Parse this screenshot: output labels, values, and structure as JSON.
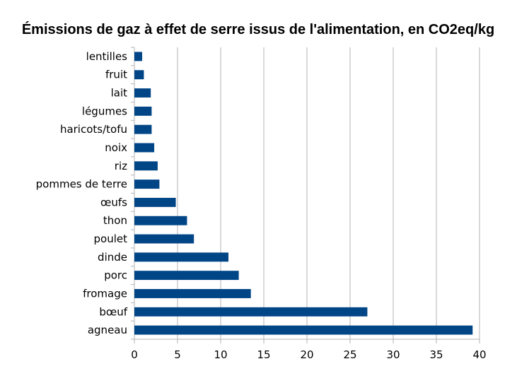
{
  "chart_data": {
    "type": "bar",
    "orientation": "horizontal",
    "title": "Émissions de gaz à effet de serre  issus de l'alimentation, en CO2eq/kg",
    "xlabel": "",
    "ylabel": "",
    "categories": [
      "lentilles",
      "fruit",
      "lait",
      "légumes",
      "haricots/tofu",
      "noix",
      "riz",
      "pommes de terre",
      "œufs",
      "thon",
      "poulet",
      "dinde",
      "porc",
      "fromage",
      "bœuf",
      "agneau"
    ],
    "values": [
      0.9,
      1.1,
      1.9,
      2.0,
      2.0,
      2.3,
      2.7,
      2.9,
      4.8,
      6.1,
      6.9,
      10.9,
      12.1,
      13.5,
      27.0,
      39.2
    ],
    "xlim": [
      0,
      40
    ],
    "xticks": [
      0,
      5,
      10,
      15,
      20,
      25,
      30,
      35,
      40
    ],
    "grid": true,
    "legend": "none",
    "bar_color": "#004586"
  }
}
